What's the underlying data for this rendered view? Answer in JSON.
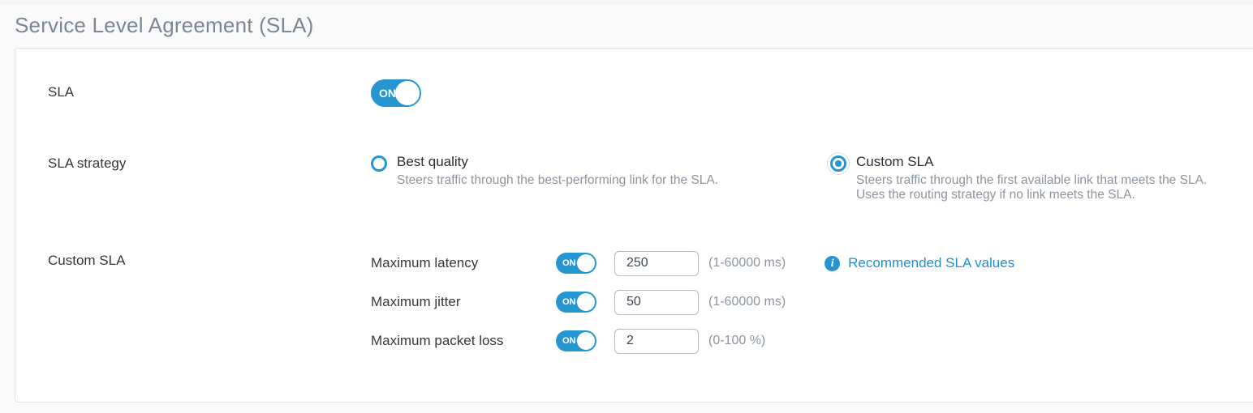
{
  "page": {
    "title": "Service Level Agreement (SLA)"
  },
  "form": {
    "sla": {
      "label": "SLA",
      "toggle_state": "ON"
    },
    "strategy": {
      "label": "SLA strategy",
      "options": [
        {
          "label": "Best quality",
          "description": "Steers traffic through the best-performing link for the SLA.",
          "selected": false
        },
        {
          "label": "Custom SLA",
          "description": "Steers traffic through the first available link that meets the SLA. Uses the routing strategy if no link meets the SLA.",
          "selected": true
        }
      ]
    },
    "custom_sla": {
      "label": "Custom SLA",
      "rows": [
        {
          "label": "Maximum latency",
          "toggle_state": "ON",
          "value": "250",
          "hint": "(1-60000 ms)"
        },
        {
          "label": "Maximum jitter",
          "toggle_state": "ON",
          "value": "50",
          "hint": "(1-60000 ms)"
        },
        {
          "label": "Maximum packet loss",
          "toggle_state": "ON",
          "value": "2",
          "hint": "(0-100 %)"
        }
      ],
      "recommended_link": "Recommended SLA values"
    }
  },
  "colors": {
    "accent_blue": "#2596d1",
    "link_blue": "#1f8fd1",
    "title_gray": "#7b8796",
    "muted_text": "#8d959e"
  },
  "icons": {
    "info": "i"
  }
}
